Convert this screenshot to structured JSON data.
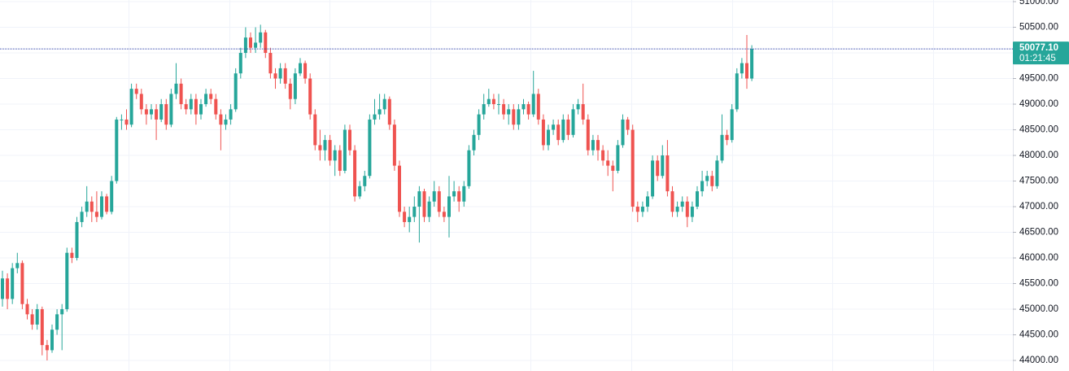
{
  "chart_data": {
    "type": "candlestick",
    "up_color": "#26a69a",
    "down_color": "#ef5350",
    "grid": true,
    "ylim": [
      43794,
      51032
    ],
    "yticks": [
      {
        "value": 44000,
        "label": "44000.00"
      },
      {
        "value": 44500,
        "label": "44500.00"
      },
      {
        "value": 45000,
        "label": "45000.00"
      },
      {
        "value": 45500,
        "label": "45500.00"
      },
      {
        "value": 46000,
        "label": "46000.00"
      },
      {
        "value": 46500,
        "label": "46500.00"
      },
      {
        "value": 47000,
        "label": "47000.00"
      },
      {
        "value": 47500,
        "label": "47500.00"
      },
      {
        "value": 48000,
        "label": "48000.00"
      },
      {
        "value": 48500,
        "label": "48500.00"
      },
      {
        "value": 49000,
        "label": "49000.00"
      },
      {
        "value": 49500,
        "label": "49500.00"
      },
      {
        "value": 50000,
        "label": "50000.00"
      },
      {
        "value": 50500,
        "label": "50500.00"
      },
      {
        "value": 51000,
        "label": "51000.00"
      }
    ],
    "last_price": {
      "value": 50077.1,
      "label": "50077.10",
      "color": "#26a69a",
      "line_color": "#2a3fa8"
    },
    "countdown": "01:21:45",
    "ohlc": [
      [
        45200,
        45750,
        45050,
        45600
      ],
      [
        45600,
        45700,
        45000,
        45200
      ],
      [
        45200,
        45900,
        45100,
        45800
      ],
      [
        45800,
        46100,
        45700,
        45900
      ],
      [
        45900,
        45950,
        45000,
        45100
      ],
      [
        45100,
        45200,
        44800,
        44900
      ],
      [
        44900,
        45000,
        44600,
        44700
      ],
      [
        44700,
        45100,
        44600,
        45000
      ],
      [
        45000,
        45050,
        44100,
        44300
      ],
      [
        44300,
        44400,
        44000,
        44200
      ],
      [
        44200,
        44700,
        44150,
        44600
      ],
      [
        44600,
        45000,
        44500,
        44900
      ],
      [
        44900,
        45100,
        44200,
        45000
      ],
      [
        45000,
        46200,
        44950,
        46100
      ],
      [
        46100,
        46200,
        45900,
        46000
      ],
      [
        46000,
        46800,
        45950,
        46700
      ],
      [
        46700,
        47000,
        46600,
        46900
      ],
      [
        46900,
        47400,
        46800,
        47100
      ],
      [
        47100,
        47200,
        46700,
        46900
      ],
      [
        46900,
        47300,
        46700,
        46800
      ],
      [
        46800,
        47300,
        46750,
        47200
      ],
      [
        47200,
        47250,
        46850,
        46900
      ],
      [
        46900,
        47600,
        46850,
        47500
      ],
      [
        47500,
        48750,
        47450,
        48700
      ],
      [
        48700,
        48800,
        48500,
        48700
      ],
      [
        48700,
        48900,
        48500,
        48600
      ],
      [
        48600,
        49400,
        48550,
        49300
      ],
      [
        49300,
        49400,
        49100,
        49200
      ],
      [
        49200,
        49300,
        48800,
        48900
      ],
      [
        48900,
        49000,
        48600,
        48800
      ],
      [
        48800,
        49000,
        48700,
        48900
      ],
      [
        48900,
        49000,
        48300,
        48700
      ],
      [
        48700,
        49100,
        48650,
        49000
      ],
      [
        49000,
        49100,
        48500,
        48600
      ],
      [
        48600,
        49300,
        48550,
        49200
      ],
      [
        49200,
        49800,
        49100,
        49400
      ],
      [
        49400,
        49500,
        48900,
        49000
      ],
      [
        49000,
        49100,
        48800,
        48900
      ],
      [
        48900,
        49200,
        48800,
        49100
      ],
      [
        49100,
        49200,
        48600,
        48800
      ],
      [
        48800,
        49100,
        48700,
        49000
      ],
      [
        49000,
        49300,
        48950,
        49200
      ],
      [
        49200,
        49300,
        49000,
        49100
      ],
      [
        49100,
        49200,
        48700,
        48800
      ],
      [
        48800,
        48900,
        48100,
        48600
      ],
      [
        48600,
        48800,
        48500,
        48700
      ],
      [
        48700,
        49000,
        48600,
        48900
      ],
      [
        48900,
        49700,
        48850,
        49600
      ],
      [
        49600,
        50100,
        49500,
        50000
      ],
      [
        50000,
        50500,
        49900,
        50300
      ],
      [
        50300,
        50400,
        50000,
        50100
      ],
      [
        50100,
        50500,
        50000,
        50200
      ],
      [
        50200,
        50550,
        50100,
        50400
      ],
      [
        50400,
        50450,
        49900,
        50000
      ],
      [
        50000,
        50100,
        49500,
        49600
      ],
      [
        49600,
        49700,
        49300,
        49500
      ],
      [
        49500,
        49800,
        49400,
        49700
      ],
      [
        49700,
        49800,
        49300,
        49400
      ],
      [
        49400,
        49500,
        48900,
        49100
      ],
      [
        49100,
        49700,
        49000,
        49600
      ],
      [
        49600,
        49900,
        49550,
        49800
      ],
      [
        49800,
        49850,
        49400,
        49500
      ],
      [
        49500,
        49600,
        48700,
        48800
      ],
      [
        48800,
        48900,
        48100,
        48200
      ],
      [
        48200,
        48500,
        47900,
        48100
      ],
      [
        48100,
        48400,
        47900,
        48300
      ],
      [
        48300,
        48400,
        47800,
        47900
      ],
      [
        47900,
        48200,
        47600,
        48100
      ],
      [
        48100,
        48200,
        47600,
        47700
      ],
      [
        47700,
        48600,
        47650,
        48500
      ],
      [
        48500,
        48600,
        48000,
        48100
      ],
      [
        48100,
        48200,
        47100,
        47200
      ],
      [
        47200,
        47500,
        47150,
        47400
      ],
      [
        47400,
        47700,
        47300,
        47600
      ],
      [
        47600,
        48800,
        47550,
        48700
      ],
      [
        48700,
        49100,
        48600,
        48800
      ],
      [
        48800,
        49200,
        48700,
        48900
      ],
      [
        48900,
        49200,
        48800,
        49100
      ],
      [
        49100,
        49150,
        48500,
        48600
      ],
      [
        48600,
        48700,
        47700,
        47800
      ],
      [
        47800,
        47900,
        46800,
        46900
      ],
      [
        46900,
        47000,
        46600,
        46700
      ],
      [
        46700,
        47000,
        46500,
        46800
      ],
      [
        46800,
        47200,
        46700,
        47000
      ],
      [
        47000,
        47400,
        46300,
        47300
      ],
      [
        47300,
        47350,
        46700,
        46800
      ],
      [
        46800,
        47200,
        46700,
        47100
      ],
      [
        47100,
        47500,
        47000,
        47300
      ],
      [
        47300,
        47400,
        46800,
        46900
      ],
      [
        46900,
        47000,
        46700,
        46800
      ],
      [
        46800,
        47600,
        46400,
        47200
      ],
      [
        47200,
        47500,
        47100,
        47300
      ],
      [
        47300,
        47400,
        46900,
        47100
      ],
      [
        47100,
        47500,
        47000,
        47400
      ],
      [
        47400,
        48200,
        47350,
        48100
      ],
      [
        48100,
        48500,
        48000,
        48400
      ],
      [
        48400,
        48900,
        48300,
        48800
      ],
      [
        48800,
        49200,
        48700,
        49000
      ],
      [
        49000,
        49300,
        48950,
        49100
      ],
      [
        49100,
        49200,
        48900,
        49000
      ],
      [
        49000,
        49200,
        48800,
        49000
      ],
      [
        49000,
        49100,
        48700,
        48800
      ],
      [
        48800,
        49000,
        48600,
        48900
      ],
      [
        48900,
        49000,
        48500,
        48600
      ],
      [
        48600,
        49000,
        48500,
        48900
      ],
      [
        48900,
        49100,
        48800,
        49000
      ],
      [
        49000,
        49050,
        48700,
        48800
      ],
      [
        48800,
        49650,
        48750,
        49200
      ],
      [
        49200,
        49300,
        48600,
        48700
      ],
      [
        48700,
        48800,
        48100,
        48200
      ],
      [
        48200,
        48600,
        48100,
        48500
      ],
      [
        48500,
        48700,
        48400,
        48600
      ],
      [
        48600,
        48700,
        48200,
        48300
      ],
      [
        48300,
        48800,
        48250,
        48700
      ],
      [
        48700,
        48800,
        48300,
        48400
      ],
      [
        48400,
        49000,
        48350,
        48900
      ],
      [
        48900,
        49100,
        48800,
        49000
      ],
      [
        49000,
        49400,
        48600,
        48700
      ],
      [
        48700,
        48800,
        48000,
        48100
      ],
      [
        48100,
        48400,
        48000,
        48300
      ],
      [
        48300,
        48400,
        47900,
        48100
      ],
      [
        48100,
        48200,
        47800,
        47900
      ],
      [
        47900,
        48100,
        47600,
        47800
      ],
      [
        47800,
        47900,
        47300,
        47700
      ],
      [
        47700,
        48300,
        47650,
        48200
      ],
      [
        48200,
        48800,
        48150,
        48700
      ],
      [
        48700,
        48750,
        48400,
        48500
      ],
      [
        48500,
        48600,
        46900,
        47000
      ],
      [
        47000,
        47100,
        46700,
        46900
      ],
      [
        46900,
        47100,
        46800,
        47000
      ],
      [
        47000,
        47300,
        46900,
        47200
      ],
      [
        47200,
        48000,
        47150,
        47900
      ],
      [
        47900,
        48000,
        47500,
        47600
      ],
      [
        47600,
        48200,
        47550,
        48000
      ],
      [
        48000,
        48300,
        47200,
        47300
      ],
      [
        47300,
        47400,
        46800,
        46900
      ],
      [
        46900,
        47100,
        46800,
        47000
      ],
      [
        47000,
        47200,
        46900,
        47100
      ],
      [
        47100,
        47200,
        46600,
        46800
      ],
      [
        46800,
        47100,
        46700,
        47000
      ],
      [
        47000,
        47400,
        46950,
        47300
      ],
      [
        47300,
        47700,
        47200,
        47500
      ],
      [
        47500,
        47700,
        47400,
        47600
      ],
      [
        47600,
        47700,
        47300,
        47400
      ],
      [
        47400,
        48000,
        47350,
        47900
      ],
      [
        47900,
        48800,
        47850,
        48400
      ],
      [
        48400,
        48500,
        48200,
        48300
      ],
      [
        48300,
        49000,
        48250,
        48900
      ],
      [
        48900,
        49700,
        48850,
        49600
      ],
      [
        49600,
        49900,
        49500,
        49800
      ],
      [
        49800,
        50350,
        49300,
        49500
      ],
      [
        49500,
        50150,
        49450,
        50077.1
      ]
    ]
  }
}
